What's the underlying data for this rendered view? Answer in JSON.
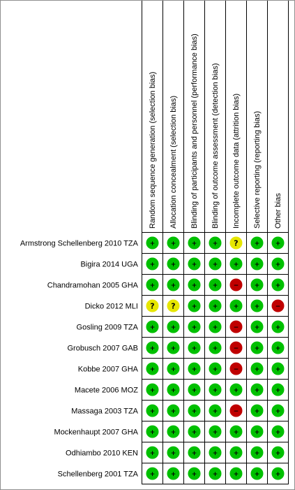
{
  "chart_data": {
    "type": "table",
    "columns": [
      "Random sequence generation (selection bias)",
      "Allocation concealment (selection bias)",
      "Blinding of participants and personnel (performance bias)",
      "Blinding of outcome assessment (detection bias)",
      "Incomplete outcome data (attrition bias)",
      "Selective reporting (reporting bias)",
      "Other bias"
    ],
    "rows": [
      {
        "study": "Armstrong Schellenberg 2010 TZA",
        "judgements": [
          "low",
          "low",
          "low",
          "low",
          "unclear",
          "low",
          "low"
        ]
      },
      {
        "study": "Bigira 2014 UGA",
        "judgements": [
          "low",
          "low",
          "low",
          "low",
          "low",
          "low",
          "low"
        ]
      },
      {
        "study": "Chandramohan 2005 GHA",
        "judgements": [
          "low",
          "low",
          "low",
          "low",
          "high",
          "low",
          "low"
        ]
      },
      {
        "study": "Dicko 2012 MLI",
        "judgements": [
          "unclear",
          "unclear",
          "low",
          "low",
          "low",
          "low",
          "high"
        ]
      },
      {
        "study": "Gosling 2009 TZA",
        "judgements": [
          "low",
          "low",
          "low",
          "low",
          "high",
          "low",
          "low"
        ]
      },
      {
        "study": "Grobusch 2007 GAB",
        "judgements": [
          "low",
          "low",
          "low",
          "low",
          "high",
          "low",
          "low"
        ]
      },
      {
        "study": "Kobbe 2007 GHA",
        "judgements": [
          "low",
          "low",
          "low",
          "low",
          "high",
          "low",
          "low"
        ]
      },
      {
        "study": "Macete 2006 MOZ",
        "judgements": [
          "low",
          "low",
          "low",
          "low",
          "low",
          "low",
          "low"
        ]
      },
      {
        "study": "Massaga 2003 TZA",
        "judgements": [
          "low",
          "low",
          "low",
          "low",
          "high",
          "low",
          "low"
        ]
      },
      {
        "study": "Mockenhaupt 2007 GHA",
        "judgements": [
          "low",
          "low",
          "low",
          "low",
          "low",
          "low",
          "low"
        ]
      },
      {
        "study": "Odhiambo 2010 KEN",
        "judgements": [
          "low",
          "low",
          "low",
          "low",
          "low",
          "low",
          "low"
        ]
      },
      {
        "study": "Schellenberg 2001 TZA",
        "judgements": [
          "low",
          "low",
          "low",
          "low",
          "low",
          "low",
          "low"
        ]
      }
    ],
    "legend": {
      "low": {
        "symbol": "+",
        "color": "#00c000"
      },
      "unclear": {
        "symbol": "?",
        "color": "#e6e600"
      },
      "high": {
        "symbol": "−",
        "color": "#c00000"
      }
    }
  }
}
